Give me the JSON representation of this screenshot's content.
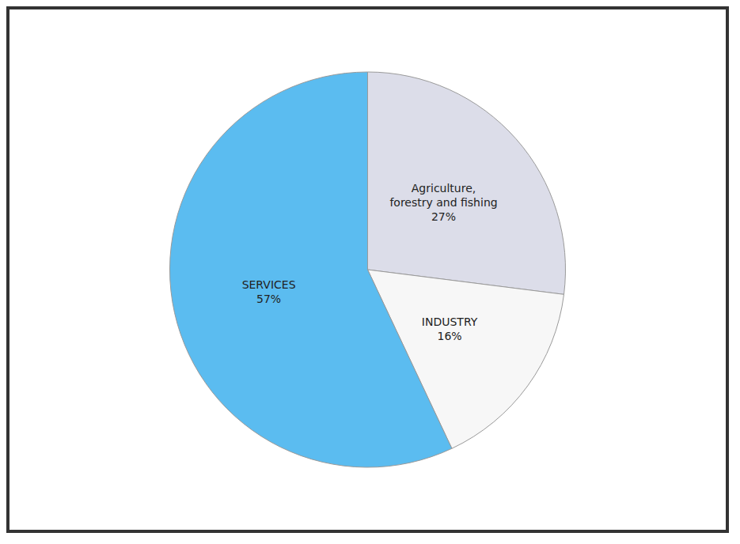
{
  "chart_data": {
    "type": "pie",
    "categories": [
      "Agriculture, forestry and fishing",
      "INDUSTRY",
      "SERVICES"
    ],
    "values": [
      27,
      16,
      57
    ],
    "value_labels": [
      "27%",
      "16%",
      "57%"
    ],
    "colors": [
      "#dcdde9",
      "#f7f7f7",
      "#5bbcf0"
    ],
    "data_labels": true
  }
}
